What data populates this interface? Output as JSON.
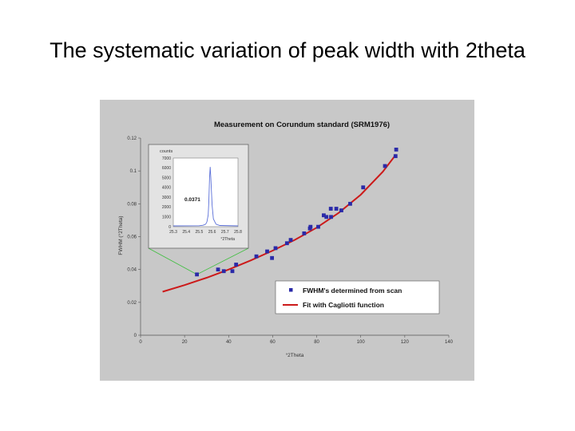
{
  "slide": {
    "title": "The systematic variation of peak width with 2theta"
  },
  "colors": {
    "points": "#2a2aa8",
    "fit": "#cc1a1a",
    "inset_peak": "#5a6fd8",
    "connector": "#3fbf3f",
    "panel": "#c8c8c8"
  },
  "chart_data": [
    {
      "type": "scatter",
      "title": "Measurement on Corundum standard (SRM1976)",
      "xlabel": "°2Theta",
      "ylabel": "FWHM (°2Theta)",
      "xlim": [
        0,
        140
      ],
      "ylim": [
        0,
        0.12
      ],
      "x_ticks": [
        "0",
        "20",
        "40",
        "60",
        "80",
        "100",
        "120",
        "140"
      ],
      "y_ticks": [
        "0",
        "0.02",
        "0.04",
        "0.06",
        "0.08",
        "0.1",
        "0.12"
      ],
      "legend_position": "bottom-right",
      "series": [
        {
          "name": "FWHM's determined from scan",
          "kind": "points",
          "x": [
            25.6,
            35.2,
            37.8,
            41.7,
            43.4,
            52.6,
            57.5,
            59.7,
            61.3,
            66.5,
            68.2,
            74.3,
            76.9,
            77.2,
            80.7,
            83.2,
            84.4,
            86.4,
            86.5,
            88.9,
            91.2,
            95.2,
            101.1,
            111.0,
            115.8,
            116.1
          ],
          "y": [
            0.037,
            0.04,
            0.039,
            0.039,
            0.043,
            0.048,
            0.051,
            0.047,
            0.053,
            0.056,
            0.058,
            0.062,
            0.065,
            0.066,
            0.066,
            0.073,
            0.072,
            0.077,
            0.072,
            0.077,
            0.076,
            0.08,
            0.09,
            0.103,
            0.109,
            0.113
          ]
        },
        {
          "name": "Fit with Cagliotti function",
          "kind": "line",
          "x": [
            10,
            20,
            30,
            40,
            50,
            60,
            70,
            80,
            90,
            100,
            110,
            116
          ],
          "y": [
            0.0265,
            0.0305,
            0.035,
            0.04,
            0.0455,
            0.0515,
            0.058,
            0.0655,
            0.0745,
            0.0855,
            0.0995,
            0.11
          ]
        }
      ]
    },
    {
      "type": "line",
      "title": "",
      "annotation": "0.0371",
      "ylabel": "counts",
      "xlabel": "°2Theta",
      "xlim": [
        25.3,
        25.8
      ],
      "ylim": [
        0,
        7000
      ],
      "x_ticks": [
        "25.3",
        "25.4",
        "25.5",
        "25.6",
        "25.7",
        "25.8"
      ],
      "y_ticks": [
        "0",
        "1000",
        "2000",
        "3000",
        "4000",
        "5000",
        "6000",
        "7000"
      ],
      "series": [
        {
          "x": [
            25.3,
            25.5,
            25.53,
            25.55,
            25.56,
            25.57,
            25.575,
            25.58,
            25.585,
            25.59,
            25.6,
            25.61,
            25.63,
            25.66,
            25.8
          ],
          "y": [
            80,
            100,
            150,
            250,
            500,
            1200,
            2600,
            5000,
            6100,
            5000,
            2200,
            800,
            250,
            120,
            80
          ]
        }
      ]
    }
  ]
}
